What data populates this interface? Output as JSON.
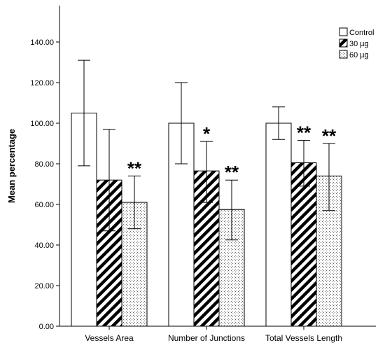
{
  "chart_data": {
    "type": "bar",
    "title": "",
    "xlabel": "",
    "ylabel": "Mean percentage",
    "ylim": [
      0,
      150
    ],
    "yticks": [
      "0.00",
      "20.00",
      "40.00",
      "60.00",
      "80.00",
      "100.00",
      "120.00",
      "140.00"
    ],
    "categories": [
      "Vessels Area",
      "Number of Junctions",
      "Total Vessels Length"
    ],
    "series": [
      {
        "name": "Control",
        "pattern": "open",
        "values": [
          105,
          100,
          100
        ],
        "error_low": [
          79,
          80,
          92
        ],
        "error_high": [
          131,
          120,
          108
        ],
        "significance": [
          "",
          "",
          ""
        ]
      },
      {
        "name": "30 µg",
        "pattern": "diagonal-hatch",
        "values": [
          72,
          76.5,
          80.5
        ],
        "error_low": [
          47,
          61,
          69
        ],
        "error_high": [
          97,
          91,
          91.5
        ],
        "significance": [
          "",
          "*",
          "**"
        ]
      },
      {
        "name": "60 µg",
        "pattern": "dotted",
        "values": [
          61,
          57.5,
          74
        ],
        "error_low": [
          48,
          42.5,
          57
        ],
        "error_high": [
          74,
          72,
          90
        ],
        "significance": [
          "**",
          "**",
          "**"
        ]
      }
    ],
    "legend": {
      "placement": "top-right"
    },
    "grid": false
  }
}
